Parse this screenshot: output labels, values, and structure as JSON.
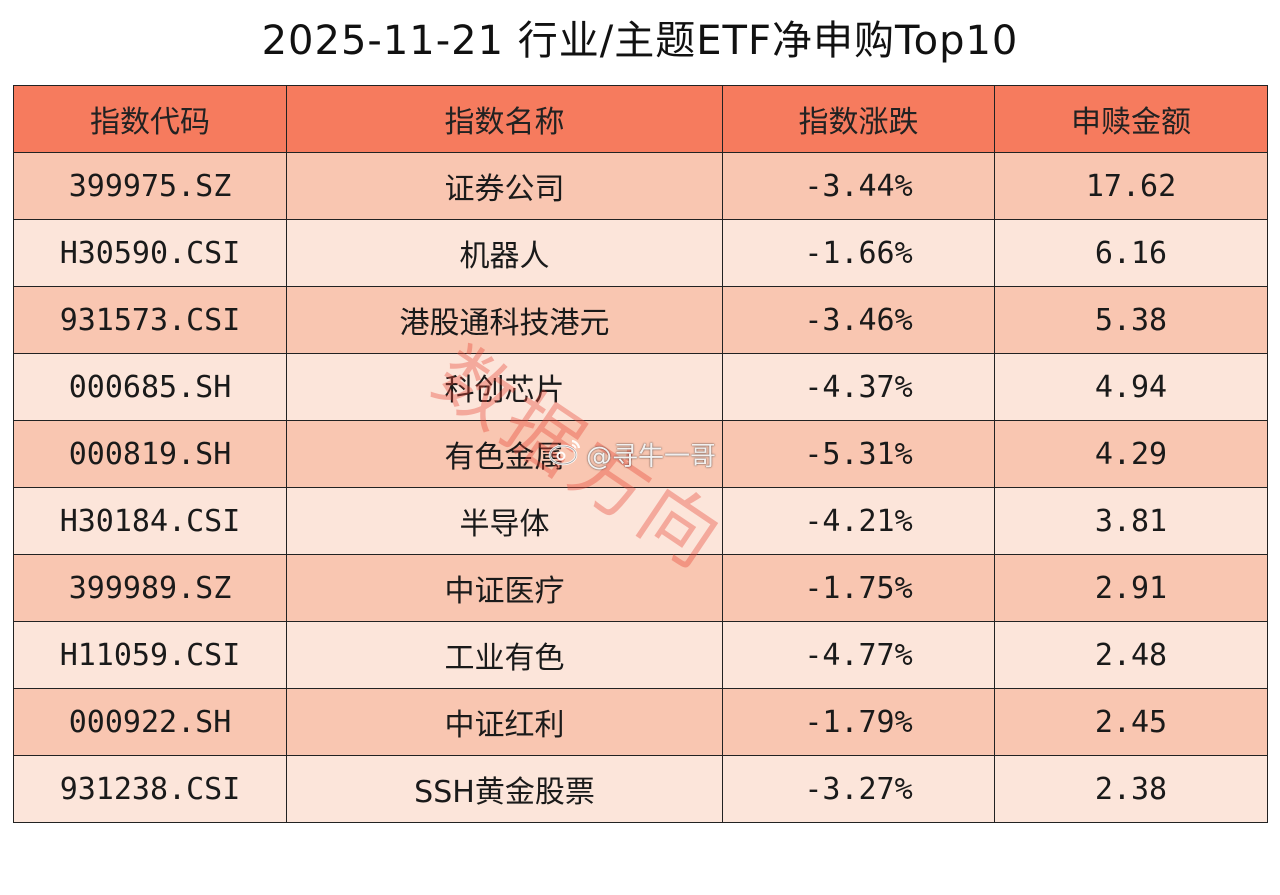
{
  "title": "2025-11-21 行业/主题ETF净申购Top10",
  "colors": {
    "header_bg": "#F67B5E",
    "row_odd_bg": "#F9C6B1",
    "row_even_bg": "#FCE5DA",
    "border": "#222222",
    "watermark": "#E84637"
  },
  "watermark": {
    "text": "数据方向",
    "account": "@寻牛一哥",
    "icon": "weibo-icon"
  },
  "chart_data": {
    "type": "table",
    "title": "2025-11-21 行业/主题ETF净申购Top10",
    "columns": [
      "指数代码",
      "指数名称",
      "指数涨跌",
      "申赎金额"
    ],
    "rows": [
      [
        "399975.SZ",
        "证券公司",
        "-3.44%",
        "17.62"
      ],
      [
        "H30590.CSI",
        "机器人",
        "-1.66%",
        "6.16"
      ],
      [
        "931573.CSI",
        "港股通科技港元",
        "-3.46%",
        "5.38"
      ],
      [
        "000685.SH",
        "科创芯片",
        "-4.37%",
        "4.94"
      ],
      [
        "000819.SH",
        "有色金属",
        "-5.31%",
        "4.29"
      ],
      [
        "H30184.CSI",
        "半导体",
        "-4.21%",
        "3.81"
      ],
      [
        "399989.SZ",
        "中证医疗",
        "-1.75%",
        "2.91"
      ],
      [
        "H11059.CSI",
        "工业有色",
        "-4.77%",
        "2.48"
      ],
      [
        "000922.SH",
        "中证红利",
        "-1.79%",
        "2.45"
      ],
      [
        "931238.CSI",
        "SSH黄金股票",
        "-3.27%",
        "2.38"
      ]
    ]
  }
}
